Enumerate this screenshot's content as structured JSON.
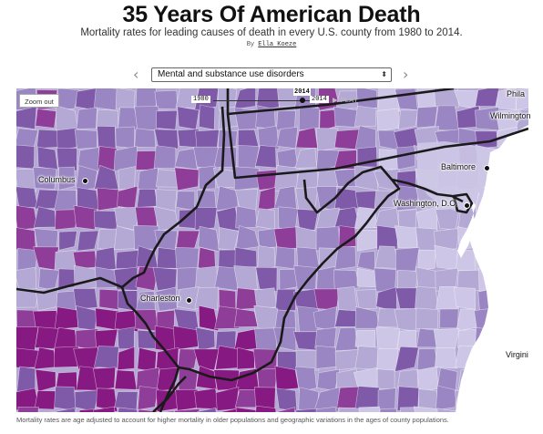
{
  "header": {
    "title": "35 Years Of American Death",
    "subtitle": "Mortality rates for leading causes of death in every U.S. county from 1980 to 2014.",
    "byline_prefix": "By",
    "author": "Ella Koeze"
  },
  "controls": {
    "prev_arrow": "‹",
    "next_arrow": "›",
    "cause_select": {
      "selected": "Mental and substance use disorders",
      "caret": "⬍"
    },
    "zoom_out_label": "Zoom out",
    "slider": {
      "start_year": "1980",
      "end_year": "2014",
      "current_year": "2014",
      "position": 1.0,
      "play_label": "▶ PLAY"
    }
  },
  "colors": {
    "lightest": "#cdc6e6",
    "light": "#b4a9d4",
    "medium": "#9a86c2",
    "dark": "#7f5aa9",
    "darker": "#8e3e98",
    "darkest": "#861a82",
    "water": "#ffffff",
    "border": "#1a1a1a"
  },
  "cities": [
    {
      "name": "Columbus"
    },
    {
      "name": "Charleston"
    },
    {
      "name": "Washington, D.C."
    },
    {
      "name": "Baltimore"
    },
    {
      "name": "Wilmington"
    },
    {
      "name": "Phila"
    },
    {
      "name": "Virgini"
    }
  ],
  "footnote": "Mortality rates are age adjusted to account for higher mortality in older populations and geographic variations in the ages of county populations."
}
